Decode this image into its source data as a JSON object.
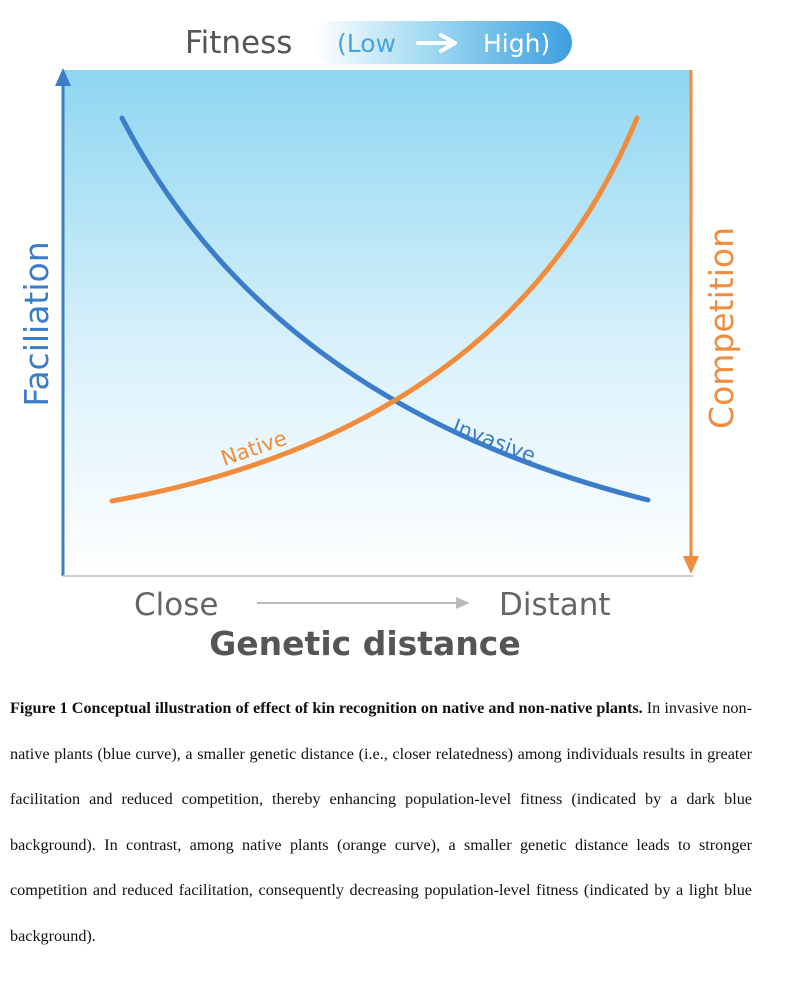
{
  "top_label": {
    "title": "Fitness",
    "scale_low": "(Low",
    "scale_high": "High)"
  },
  "y_left_label": "Faciliation",
  "y_right_label": "Competition",
  "x_axis": {
    "left": "Close",
    "right": "Distant",
    "title": "Genetic distance"
  },
  "curves": {
    "native": "Native",
    "invasive": "Invasive"
  },
  "colors": {
    "blue": "#3b7dc9",
    "orange": "#f08c3c",
    "bg_top": "#8ed6f1",
    "bg_bottom": "#ffffff",
    "text_gray": "#555555"
  },
  "caption": {
    "bold": "Figure 1 Conceptual illustration of effect of kin recognition on native and non-native plants.",
    "text": " In invasive non-native plants (blue curve), a smaller genetic distance (i.e., closer relatedness) among individuals results in greater facilitation and reduced competition, thereby enhancing population-level fitness (indicated by a dark blue background). In contrast, among native plants (orange curve), a smaller genetic distance leads to stronger competition and reduced facilitation, consequently decreasing population-level fitness (indicated by a light blue background)."
  }
}
